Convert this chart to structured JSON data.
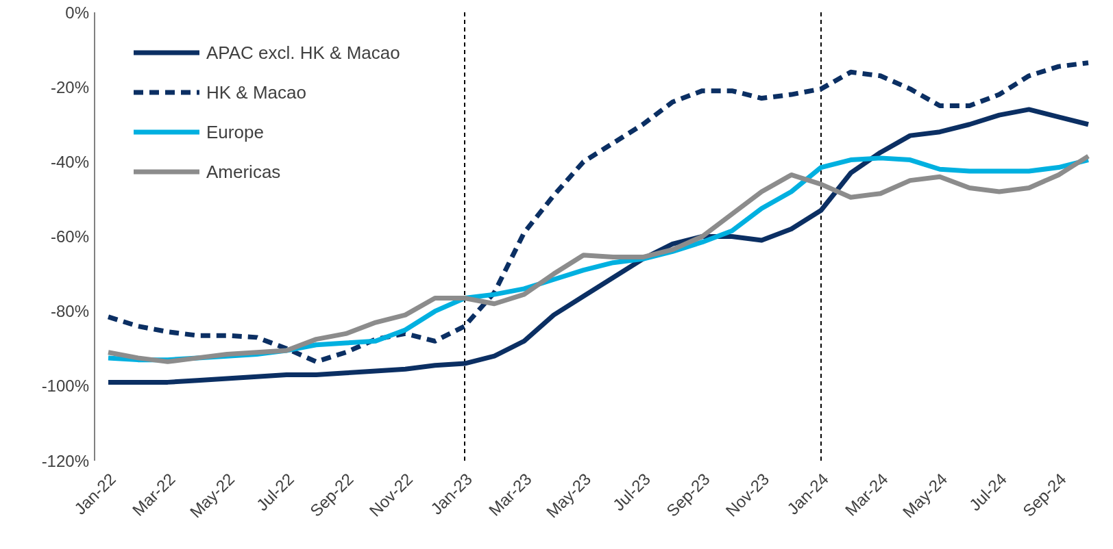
{
  "chart_data": {
    "type": "line",
    "categories": [
      "Jan-22",
      null,
      "Mar-22",
      null,
      "May-22",
      null,
      "Jul-22",
      null,
      "Sep-22",
      null,
      "Nov-22",
      null,
      "Jan-23",
      null,
      "Mar-23",
      null,
      "May-23",
      null,
      "Jul-23",
      null,
      "Sep-23",
      null,
      "Nov-23",
      null,
      "Jan-24",
      null,
      "Mar-24",
      null,
      "May-24",
      null,
      "Jul-24",
      null,
      "Sep-24",
      null
    ],
    "series": [
      {
        "name": "APAC excl. HK & Macao",
        "color": "#0b2f63",
        "line_style": "solid",
        "values": [
          -99,
          -99,
          -99,
          -98.5,
          -98,
          -97.5,
          -97,
          -97,
          -96.5,
          -96,
          -95.5,
          -94.5,
          -94,
          -92,
          -88,
          -81,
          -76,
          -71,
          -66,
          -62,
          -60,
          -60,
          -61,
          -58,
          -53,
          -43,
          -37.5,
          -33,
          -32,
          -30,
          -27.5,
          -26,
          -28,
          -30
        ]
      },
      {
        "name": "HK & Macao",
        "color": "#0b2f63",
        "line_style": "dashed",
        "values": [
          -81.5,
          -84,
          -85.5,
          -86.5,
          -86.5,
          -87,
          -90,
          -93.5,
          -91,
          -87.5,
          -86,
          -88,
          -84,
          -75,
          -59,
          -49,
          -40,
          -35,
          -30,
          -24,
          -21,
          -21,
          -23,
          -22,
          -20.5,
          -16,
          -17,
          -20.5,
          -25,
          -25,
          -22,
          -17,
          -14.5,
          -13.5
        ]
      },
      {
        "name": "Europe",
        "color": "#00b0e0",
        "line_style": "solid",
        "values": [
          -92.5,
          -93,
          -93,
          -92.5,
          -92,
          -91.5,
          -90.5,
          -89,
          -88.5,
          -88,
          -85,
          -80,
          -76.5,
          -75.5,
          -74,
          -71.5,
          -69,
          -67,
          -66,
          -64,
          -61.5,
          -58.5,
          -52.5,
          -48,
          -41.5,
          -39.5,
          -39,
          -39.5,
          -42,
          -42.5,
          -42.5,
          -42.5,
          -41.5,
          -39.5
        ]
      },
      {
        "name": "Americas",
        "color": "#8c8c8c",
        "line_style": "solid",
        "values": [
          -91,
          -92.5,
          -93.5,
          -92.5,
          -91.5,
          -91,
          -90.5,
          -87.5,
          -86,
          -83,
          -81,
          -76.5,
          -76.5,
          -78,
          -75.5,
          -70,
          -65,
          -65.5,
          -65.5,
          -63.5,
          -60,
          -54,
          -48,
          -43.5,
          -46,
          -49.5,
          -48.5,
          -45,
          -44,
          -47,
          -48,
          -47,
          -43.5,
          -38.5
        ]
      }
    ],
    "ylim": [
      -120,
      0
    ],
    "yticks": [
      {
        "value": -120,
        "label": "-120%"
      },
      {
        "value": -100,
        "label": "-100%"
      },
      {
        "value": -80,
        "label": "-80%"
      },
      {
        "value": -60,
        "label": "-60%"
      },
      {
        "value": -40,
        "label": "-40%"
      },
      {
        "value": -20,
        "label": "-20%"
      },
      {
        "value": 0,
        "label": "0%"
      }
    ],
    "ref_lines": [
      {
        "axis": "x",
        "value": "Jan-23",
        "color": "#000000",
        "line_style": "dashed"
      },
      {
        "axis": "x",
        "value": "Jan-24",
        "color": "#000000",
        "line_style": "dashed"
      }
    ],
    "grid": false,
    "legend": "top left",
    "marker": "none"
  }
}
